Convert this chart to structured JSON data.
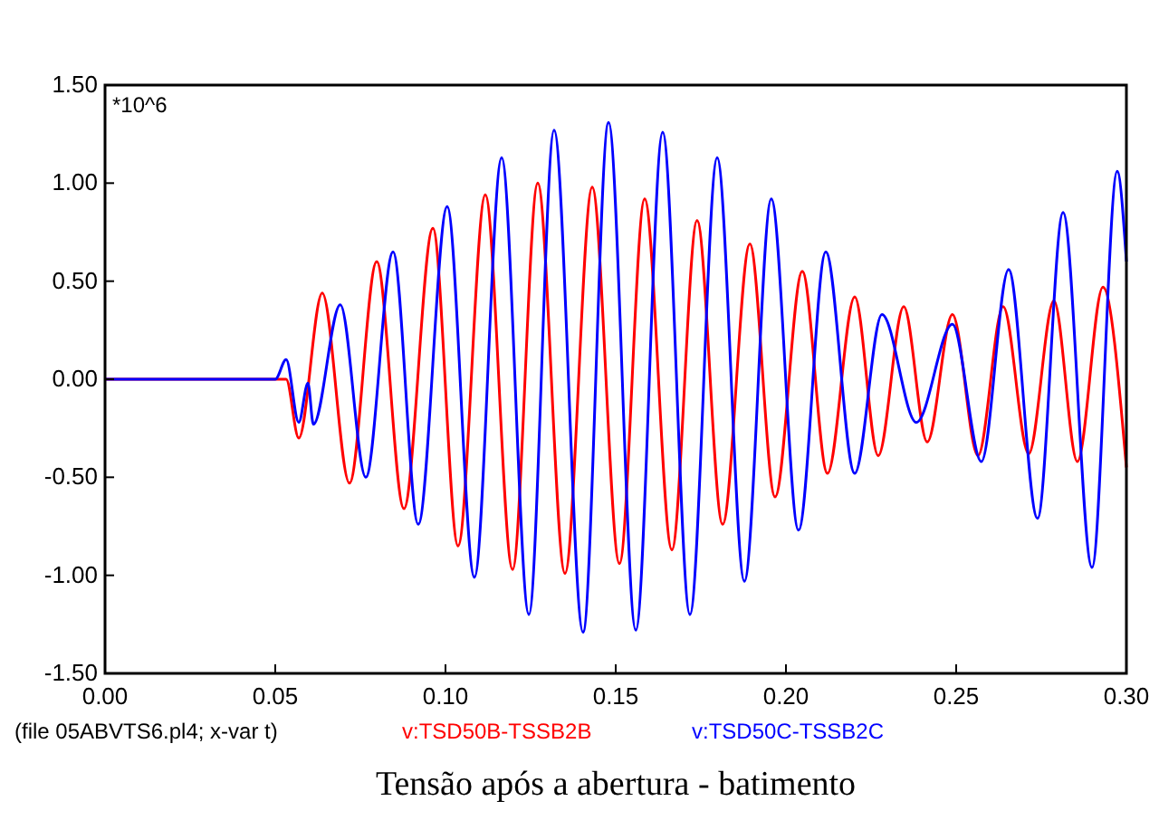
{
  "chart_data": {
    "type": "line",
    "title": "Tensão após a abertura - batimento",
    "annotations": [
      "*10^6",
      "(file 05ABVTS6.pl4; x-var t)"
    ],
    "xlim": [
      0,
      0.3
    ],
    "ylim": [
      -1.5,
      1.5
    ],
    "xticks": [
      {
        "value": 0,
        "label": "0.00"
      },
      {
        "value": 0.05,
        "label": "0.05"
      },
      {
        "value": 0.1,
        "label": "0.10"
      },
      {
        "value": 0.15,
        "label": "0.15"
      },
      {
        "value": 0.2,
        "label": "0.20"
      },
      {
        "value": 0.25,
        "label": "0.25"
      },
      {
        "value": 0.3,
        "label": "0.30"
      }
    ],
    "yticks": [
      {
        "value": -1.5,
        "label": "-1.50"
      },
      {
        "value": -1,
        "label": "-1.00"
      },
      {
        "value": -0.5,
        "label": "-0.50"
      },
      {
        "value": 0,
        "label": "0.00"
      },
      {
        "value": 0.5,
        "label": "0.50"
      },
      {
        "value": 1,
        "label": "1.00"
      },
      {
        "value": 1.5,
        "label": "1.50"
      }
    ],
    "grid": false,
    "legend": "bottom",
    "marker": "none",
    "line_style": "solid",
    "series": [
      {
        "name": "v:TSD50B-TSSB2B",
        "color": "#ff0000",
        "x": [
          0,
          0.0532,
          0.0569,
          0.0638,
          0.0718,
          0.0798,
          0.0878,
          0.0963,
          0.1037,
          0.1117,
          0.1197,
          0.1271,
          0.1351,
          0.1431,
          0.1511,
          0.1585,
          0.1665,
          0.1739,
          0.1814,
          0.1894,
          0.1968,
          0.2048,
          0.2122,
          0.2202,
          0.2271,
          0.2346,
          0.2415,
          0.2489,
          0.2564,
          0.2638,
          0.2713,
          0.2787,
          0.2856,
          0.2931,
          0.3
        ],
        "values": [
          0,
          0,
          -0.3,
          0.44,
          -0.53,
          0.6,
          -0.66,
          0.77,
          -0.85,
          0.94,
          -0.97,
          1.0,
          -0.99,
          0.98,
          -0.94,
          0.92,
          -0.87,
          0.81,
          -0.74,
          0.69,
          -0.6,
          0.55,
          -0.48,
          0.42,
          -0.39,
          0.37,
          -0.32,
          0.33,
          -0.39,
          0.37,
          -0.38,
          0.4,
          -0.42,
          0.47,
          -0.45
        ]
      },
      {
        "name": "v:TSD50C-TSSB2C",
        "color": "#0000ff",
        "x": [
          0,
          0.05,
          0.0532,
          0.0569,
          0.0596,
          0.0612,
          0.0691,
          0.0766,
          0.0846,
          0.092,
          0.1005,
          0.1085,
          0.1165,
          0.1245,
          0.1319,
          0.1404,
          0.1479,
          0.1559,
          0.1638,
          0.1718,
          0.1798,
          0.1878,
          0.1957,
          0.2037,
          0.2117,
          0.2202,
          0.2282,
          0.2383,
          0.2489,
          0.2574,
          0.2654,
          0.2739,
          0.2814,
          0.2899,
          0.2973,
          0.3
        ],
        "values": [
          0,
          0,
          0.1,
          -0.22,
          -0.02,
          -0.23,
          0.38,
          -0.5,
          0.65,
          -0.74,
          0.88,
          -1.01,
          1.13,
          -1.2,
          1.27,
          -1.29,
          1.31,
          -1.28,
          1.26,
          -1.2,
          1.13,
          -1.03,
          0.92,
          -0.77,
          0.65,
          -0.48,
          0.33,
          -0.22,
          0.28,
          -0.42,
          0.56,
          -0.71,
          0.85,
          -0.96,
          1.06,
          0.6
        ]
      }
    ]
  }
}
